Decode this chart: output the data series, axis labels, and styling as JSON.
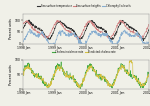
{
  "legend1": [
    "Sea surface temperature",
    "Sea surface heights",
    "Chlorophyll a levels"
  ],
  "legend1_colors": [
    "#333333",
    "#d08080",
    "#88aed0"
  ],
  "legend2": [
    "Cholera incidence rate",
    "Predicted cholera rate"
  ],
  "legend2_colors": [
    "#44aa44",
    "#d4c040"
  ],
  "xlabel_ticks": [
    "1998 Jan",
    "1999 Jan",
    "2000 Jan",
    "2001 Jan",
    "2002 Jan"
  ],
  "ylabel1": "Percent units",
  "ylabel2": "Percent units",
  "ylim1": [
    0,
    125
  ],
  "ylim2": [
    0,
    100
  ],
  "yticks1": [
    0,
    50,
    100
  ],
  "yticks2": [
    0,
    50,
    100
  ],
  "bg_color": "#f0f0e8",
  "n_points": 480
}
